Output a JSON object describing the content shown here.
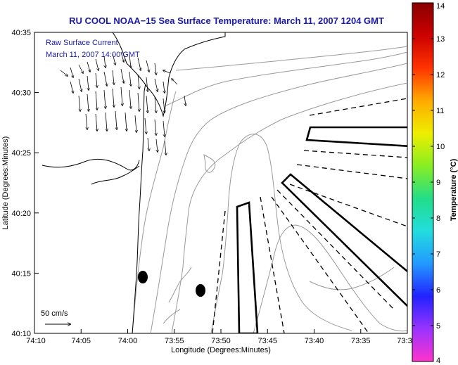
{
  "title": "RU COOL  NOAA−15  Sea Surface Temperature:  March 11, 2007 1204 GMT",
  "xlabel": "Longitude (Degrees:Minutes)",
  "ylabel": "Latitude (Degrees:Minutes)",
  "x_ticks": [
    "74:10",
    "74:05",
    "74:00",
    "73:55",
    "73:50",
    "73:45",
    "73:40",
    "73:35",
    "73:3"
  ],
  "y_ticks": [
    "40:35",
    "40:30",
    "40:25",
    "40:20",
    "40:15",
    "40:10"
  ],
  "legend": {
    "line1": "Raw Surface Current",
    "line2": "March 11, 2007 14:00 GMT"
  },
  "scale_label": "50 cm/s",
  "colorbar": {
    "label": "Temperature (°C)",
    "ticks": [
      "14",
      "13",
      "12",
      "11",
      "10",
      "9",
      "8",
      "7",
      "6",
      "5",
      "4"
    ],
    "min": 4,
    "max": 14,
    "stops": [
      "#ff33cc",
      "#9933ff",
      "#2222ff",
      "#2299ff",
      "#22dddd",
      "#22dd88",
      "#88ee22",
      "#eeee00",
      "#ffaa00",
      "#ff3300",
      "#cc0000",
      "#880000"
    ]
  },
  "colors": {
    "title": "#1a1aa6",
    "land_outline": "#000000",
    "bathymetry": "#999999"
  }
}
